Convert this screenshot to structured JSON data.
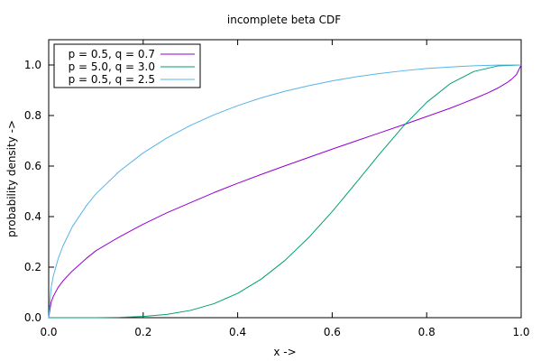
{
  "chart_data": {
    "type": "line",
    "title": "incomplete beta CDF",
    "xlabel": "x ->",
    "ylabel": "probability density ->",
    "xlim": [
      0.0,
      1.0
    ],
    "ylim": [
      0.0,
      1.1
    ],
    "x_ticks": [
      0.0,
      0.2,
      0.4,
      0.6,
      0.8,
      1.0
    ],
    "x_tick_labels": [
      "0.0",
      "0.2",
      "0.4",
      "0.6",
      "0.8",
      "1.0"
    ],
    "y_ticks": [
      0.0,
      0.2,
      0.4,
      0.6,
      0.8,
      1.0
    ],
    "y_tick_labels": [
      "0.0",
      "0.2",
      "0.4",
      "0.6",
      "0.8",
      "1.0"
    ],
    "grid": false,
    "legend_position": "top-left",
    "series": [
      {
        "name": "p = 0.5, q = 0.7",
        "color": "#9400d3",
        "x": [
          0.0,
          0.005,
          0.01,
          0.02,
          0.03,
          0.05,
          0.08,
          0.1,
          0.15,
          0.2,
          0.25,
          0.3,
          0.35,
          0.4,
          0.45,
          0.5,
          0.55,
          0.6,
          0.65,
          0.7,
          0.75,
          0.8,
          0.85,
          0.9,
          0.93,
          0.95,
          0.97,
          0.98,
          0.99,
          1.0
        ],
        "y": [
          0.0,
          0.06,
          0.085,
          0.12,
          0.145,
          0.185,
          0.235,
          0.265,
          0.32,
          0.37,
          0.415,
          0.455,
          0.495,
          0.532,
          0.567,
          0.601,
          0.634,
          0.667,
          0.699,
          0.731,
          0.763,
          0.796,
          0.829,
          0.866,
          0.89,
          0.908,
          0.93,
          0.944,
          0.962,
          1.0
        ]
      },
      {
        "name": "p = 5.0, q = 3.0",
        "color": "#009e73",
        "x": [
          0.0,
          0.1,
          0.15,
          0.2,
          0.25,
          0.3,
          0.35,
          0.4,
          0.45,
          0.5,
          0.55,
          0.6,
          0.65,
          0.7,
          0.75,
          0.8,
          0.85,
          0.9,
          0.95,
          1.0
        ],
        "y": [
          0.0,
          0.0002,
          0.0012,
          0.0047,
          0.0129,
          0.0288,
          0.0556,
          0.0963,
          0.1529,
          0.2266,
          0.3164,
          0.4199,
          0.5323,
          0.6471,
          0.7564,
          0.852,
          0.9262,
          0.9743,
          0.9962,
          1.0
        ]
      },
      {
        "name": "p = 0.5, q = 2.5",
        "color": "#56b4e9",
        "x": [
          0.0,
          0.005,
          0.01,
          0.02,
          0.03,
          0.05,
          0.08,
          0.1,
          0.15,
          0.2,
          0.25,
          0.3,
          0.35,
          0.4,
          0.45,
          0.5,
          0.55,
          0.6,
          0.65,
          0.7,
          0.75,
          0.8,
          0.85,
          0.9,
          0.95,
          1.0
        ],
        "y": [
          0.0,
          0.118,
          0.166,
          0.233,
          0.283,
          0.36,
          0.444,
          0.49,
          0.58,
          0.652,
          0.711,
          0.761,
          0.803,
          0.839,
          0.87,
          0.896,
          0.918,
          0.937,
          0.953,
          0.966,
          0.977,
          0.986,
          0.992,
          0.997,
          0.9995,
          1.0
        ]
      }
    ]
  }
}
